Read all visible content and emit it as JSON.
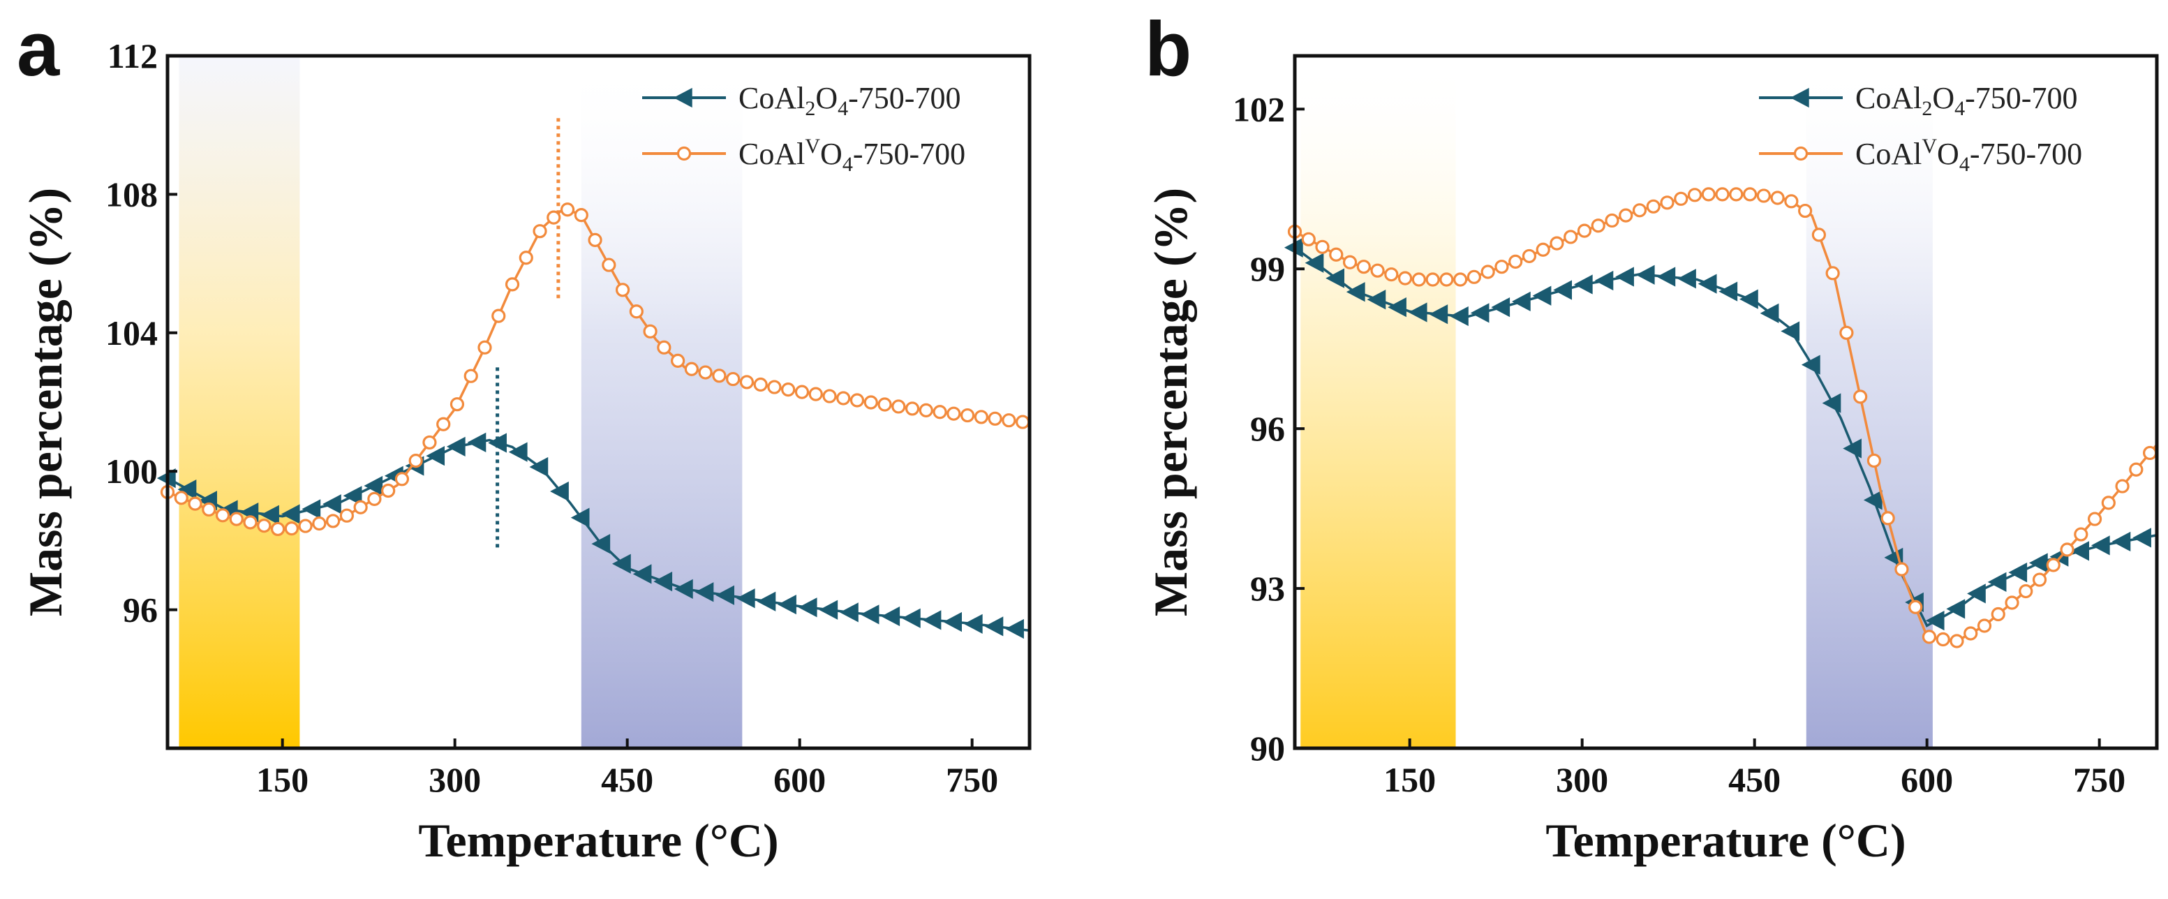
{
  "chart_data": [
    {
      "panel": "a",
      "type": "line",
      "xlabel": "Temperature (°C)",
      "ylabel": "Mass percentage (%)",
      "xlim": [
        50,
        800
      ],
      "ylim": [
        92,
        112
      ],
      "xticks": [
        150,
        300,
        450,
        600,
        750
      ],
      "yticks": [
        96,
        100,
        104,
        108,
        112
      ],
      "shaded_regions": [
        {
          "x0": 60,
          "x1": 165,
          "style": "yellow"
        },
        {
          "x0": 410,
          "x1": 550,
          "style": "blue"
        }
      ],
      "markers_vlines": [
        {
          "x": 390,
          "y0": 105,
          "y1": 110.2,
          "color": "#f28a3c"
        },
        {
          "x": 337,
          "y0": 97.8,
          "y1": 103,
          "color": "#1a5a70"
        }
      ],
      "series": [
        {
          "name": "CoAl2O4-750-700",
          "legend_parts": [
            "CoAl",
            "2",
            "O",
            "4",
            "-750-700"
          ],
          "color": "#1a5a70",
          "marker": "triangle-left",
          "x": [
            50,
            100,
            150,
            200,
            250,
            300,
            330,
            350,
            375,
            400,
            425,
            450,
            500,
            550,
            600,
            650,
            700,
            750,
            800
          ],
          "y": [
            99.8,
            98.9,
            98.7,
            99.1,
            99.9,
            100.7,
            100.9,
            100.7,
            100.1,
            99.1,
            98.0,
            97.2,
            96.6,
            96.35,
            96.1,
            95.9,
            95.75,
            95.6,
            95.4
          ]
        },
        {
          "name": "CoAlVO4-750-700",
          "legend_parts": [
            "CoAl",
            "V",
            "O",
            "4",
            "-750-700"
          ],
          "color": "#f28a3c",
          "marker": "circle",
          "x": [
            50,
            100,
            150,
            200,
            250,
            300,
            325,
            350,
            375,
            395,
            410,
            430,
            450,
            475,
            500,
            550,
            600,
            650,
            700,
            750,
            800
          ],
          "y": [
            99.4,
            98.7,
            98.3,
            98.6,
            99.6,
            101.8,
            103.5,
            105.4,
            107.0,
            107.6,
            107.4,
            106.2,
            105.0,
            103.8,
            103.0,
            102.6,
            102.3,
            102.05,
            101.8,
            101.6,
            101.4
          ]
        }
      ]
    },
    {
      "panel": "b",
      "type": "line",
      "xlabel": "Temperature (°C)",
      "ylabel": "Mass percentage (%)",
      "xlim": [
        50,
        800
      ],
      "ylim": [
        90,
        103
      ],
      "xticks": [
        150,
        300,
        450,
        600,
        750
      ],
      "yticks": [
        90,
        93,
        96,
        99,
        102
      ],
      "shaded_regions": [
        {
          "x0": 55,
          "x1": 190,
          "style": "yellow"
        },
        {
          "x0": 495,
          "x1": 605,
          "style": "blue"
        }
      ],
      "markers_vlines": [],
      "series": [
        {
          "name": "CoAl2O4-750-700",
          "legend_parts": [
            "CoAl",
            "2",
            "O",
            "4",
            "-750-700"
          ],
          "color": "#1a5a70",
          "marker": "triangle-left",
          "x": [
            50,
            100,
            150,
            200,
            250,
            300,
            350,
            400,
            450,
            480,
            500,
            525,
            550,
            575,
            600,
            625,
            650,
            700,
            750,
            800
          ],
          "y": [
            99.4,
            98.6,
            98.2,
            98.1,
            98.4,
            98.7,
            98.9,
            98.8,
            98.4,
            97.9,
            97.2,
            96.2,
            94.9,
            93.4,
            92.3,
            92.6,
            93.0,
            93.5,
            93.8,
            94.0
          ],
          "label": ""
        },
        {
          "name": "CoAlVO4-750-700",
          "legend_parts": [
            "CoAl",
            "V",
            "O",
            "4",
            "-750-700"
          ],
          "color": "#f28a3c",
          "marker": "circle",
          "x": [
            50,
            100,
            150,
            200,
            250,
            300,
            350,
            400,
            450,
            480,
            500,
            520,
            540,
            560,
            580,
            600,
            625,
            650,
            700,
            750,
            800
          ],
          "y": [
            99.7,
            99.1,
            98.8,
            98.8,
            99.2,
            99.7,
            100.1,
            100.4,
            100.4,
            100.3,
            100.0,
            98.8,
            96.8,
            94.8,
            93.2,
            92.1,
            92.0,
            92.3,
            93.2,
            94.4,
            95.7
          ]
        }
      ]
    }
  ]
}
